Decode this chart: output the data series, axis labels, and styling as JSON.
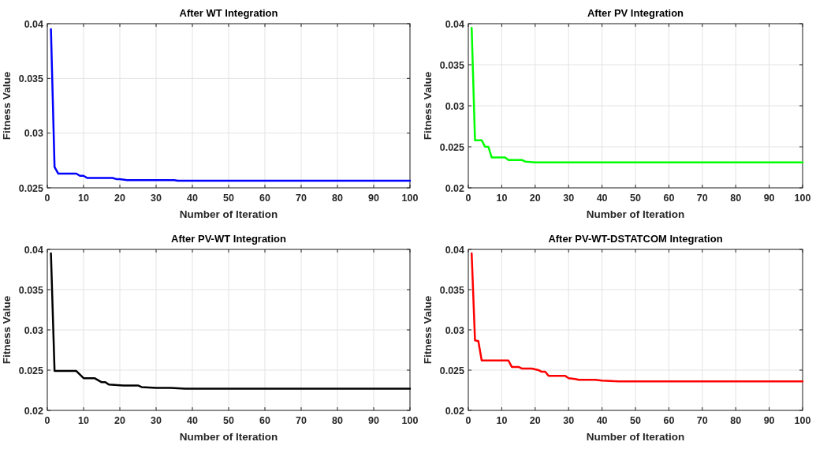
{
  "chart_data": [
    {
      "type": "line",
      "title": "After WT Integration",
      "xlabel": "Number of Iteration",
      "ylabel": "Fitness Value",
      "xlim": [
        0,
        100
      ],
      "xticks": [
        0,
        10,
        20,
        30,
        40,
        50,
        60,
        70,
        80,
        90,
        100
      ],
      "ylim": [
        0.025,
        0.04
      ],
      "yticks": [
        0.025,
        0.03,
        0.035,
        0.04
      ],
      "grid": true,
      "series": [
        {
          "color": "#0000ff",
          "x": [
            1,
            2,
            3,
            8,
            9,
            10,
            11,
            18,
            19,
            20,
            22,
            35,
            36,
            100
          ],
          "values": [
            0.0395,
            0.0269,
            0.0263,
            0.0263,
            0.0261,
            0.0261,
            0.0259,
            0.0259,
            0.0258,
            0.0258,
            0.0257,
            0.0257,
            0.02565,
            0.02565
          ]
        }
      ]
    },
    {
      "type": "line",
      "title": "After PV Integration",
      "xlabel": "Number of Iteration",
      "ylabel": "Fitness Value",
      "xlim": [
        0,
        100
      ],
      "xticks": [
        0,
        10,
        20,
        30,
        40,
        50,
        60,
        70,
        80,
        90,
        100
      ],
      "ylim": [
        0.02,
        0.04
      ],
      "yticks": [
        0.02,
        0.025,
        0.03,
        0.035,
        0.04
      ],
      "grid": true,
      "series": [
        {
          "color": "#00ff00",
          "x": [
            1,
            2,
            4,
            5,
            6,
            7,
            11,
            12,
            16,
            17,
            20,
            30,
            100
          ],
          "values": [
            0.0395,
            0.0258,
            0.0258,
            0.025,
            0.025,
            0.0237,
            0.0237,
            0.0234,
            0.0234,
            0.0232,
            0.0231,
            0.0231,
            0.0231
          ]
        }
      ]
    },
    {
      "type": "line",
      "title": "After PV-WT Integration",
      "xlabel": "Number of Iteration",
      "ylabel": "Fitness Value",
      "xlim": [
        0,
        100
      ],
      "xticks": [
        0,
        10,
        20,
        30,
        40,
        50,
        60,
        70,
        80,
        90,
        100
      ],
      "ylim": [
        0.02,
        0.04
      ],
      "yticks": [
        0.02,
        0.025,
        0.03,
        0.035,
        0.04
      ],
      "grid": true,
      "series": [
        {
          "color": "#000000",
          "x": [
            1,
            2,
            8,
            10,
            13,
            15,
            16,
            17,
            21,
            25,
            26,
            30,
            34,
            38,
            100
          ],
          "values": [
            0.0395,
            0.0249,
            0.0249,
            0.024,
            0.024,
            0.0235,
            0.0235,
            0.0232,
            0.0231,
            0.0231,
            0.0229,
            0.0228,
            0.0228,
            0.0227,
            0.0227
          ]
        }
      ]
    },
    {
      "type": "line",
      "title": "After PV-WT-DSTATCOM Integration",
      "xlabel": "Number of Iteration",
      "ylabel": "Fitness Value",
      "xlim": [
        0,
        100
      ],
      "xticks": [
        0,
        10,
        20,
        30,
        40,
        50,
        60,
        70,
        80,
        90,
        100
      ],
      "ylim": [
        0.02,
        0.04
      ],
      "yticks": [
        0.02,
        0.025,
        0.03,
        0.035,
        0.04
      ],
      "grid": true,
      "series": [
        {
          "color": "#ff0000",
          "x": [
            1,
            2,
            3,
            4,
            12,
            13,
            15,
            16,
            19,
            21,
            22,
            23,
            24,
            29,
            30,
            32,
            33,
            38,
            40,
            45,
            50,
            100
          ],
          "values": [
            0.0395,
            0.0287,
            0.0286,
            0.0262,
            0.0262,
            0.0254,
            0.0254,
            0.0252,
            0.0252,
            0.025,
            0.0248,
            0.0248,
            0.0243,
            0.0243,
            0.024,
            0.0239,
            0.0238,
            0.0238,
            0.0237,
            0.0236,
            0.0236,
            0.0236
          ]
        }
      ]
    }
  ]
}
